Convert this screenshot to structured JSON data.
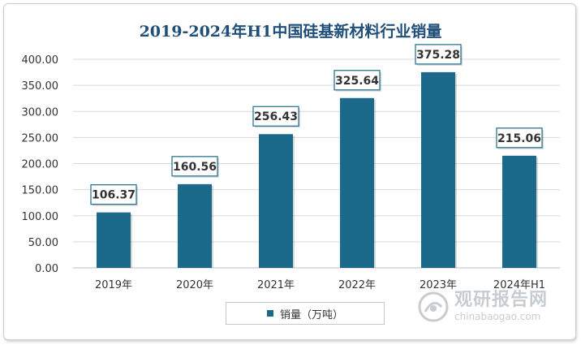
{
  "chart_data": {
    "type": "bar",
    "title": "2019-2024年H1中国硅基新材料行业销量",
    "categories": [
      "2019年",
      "2020年",
      "2021年",
      "2022年",
      "2023年",
      "2024年H1"
    ],
    "series": [
      {
        "name": "销量（万吨）",
        "values": [
          106.37,
          160.56,
          256.43,
          325.64,
          375.28,
          215.06
        ],
        "labels": [
          "106.37",
          "160.56",
          "256.43",
          "325.64",
          "375.28",
          "215.06"
        ]
      }
    ],
    "ylim": [
      0,
      400
    ],
    "yticks": [
      "0.00",
      "50.00",
      "100.00",
      "150.00",
      "200.00",
      "250.00",
      "300.00",
      "350.00",
      "400.00"
    ],
    "grid": true,
    "legend": "bottom-center",
    "bar_color": "#1b6a8c",
    "title_color": "#1f4e79"
  },
  "watermark": {
    "name_cn": "观研报告网",
    "url": "chinabaogao.com"
  }
}
